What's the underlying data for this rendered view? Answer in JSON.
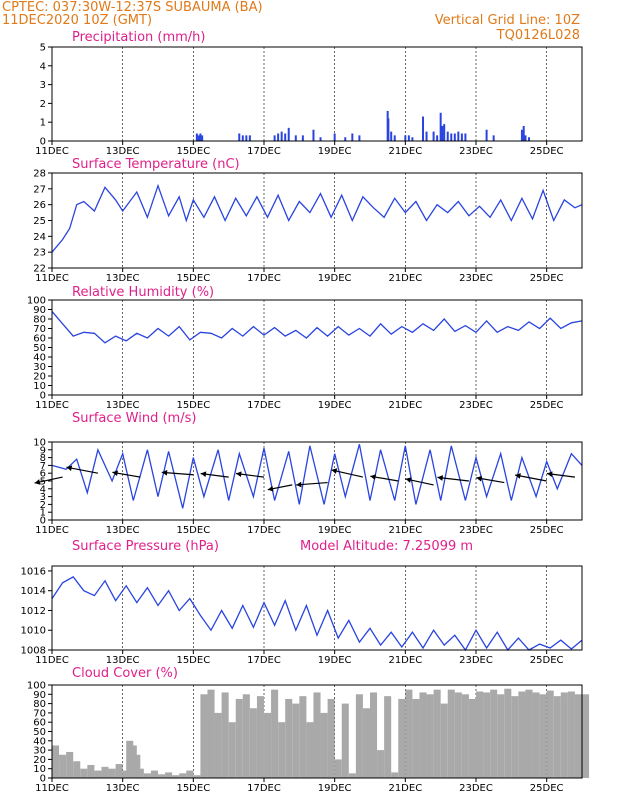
{
  "header": {
    "line1": "CPTEC:   037:30W-12:37S   SUBAUMA (BA)",
    "line2": "11DEC2020  10Z (GMT)",
    "right1": "Vertical Grid Line: 10Z",
    "right2": "TQ0126L028"
  },
  "x_labels": [
    "11DEC",
    "13DEC",
    "15DEC",
    "17DEC",
    "19DEC",
    "21DEC",
    "23DEC",
    "25DEC"
  ],
  "colors": {
    "header": "#e07a1a",
    "title": "#e0208a",
    "series": "#2a44e0",
    "bars": "#2a44e0",
    "cloud": "#a9a9a9"
  },
  "chart_data": [
    {
      "type": "bar",
      "title": "Precipitation (mm/h)",
      "ylim": [
        0,
        5
      ],
      "yticks": [
        0,
        1,
        2,
        3,
        4,
        5
      ],
      "x": [
        4.1,
        4.15,
        4.2,
        4.25,
        5.3,
        5.4,
        5.5,
        5.6,
        6.3,
        6.4,
        6.5,
        6.6,
        6.7,
        6.9,
        7.1,
        7.4,
        7.6,
        8.0,
        8.3,
        8.5,
        8.7,
        9.5,
        9.52,
        9.6,
        9.7,
        10.0,
        10.1,
        10.2,
        10.5,
        10.6,
        10.8,
        10.9,
        11.0,
        11.05,
        11.1,
        11.2,
        11.3,
        11.4,
        11.5,
        11.6,
        11.7,
        12.3,
        12.5,
        13.3,
        13.35,
        13.4,
        13.5
      ],
      "values": [
        0.4,
        0.3,
        0.4,
        0.3,
        0.4,
        0.3,
        0.3,
        0.3,
        0.3,
        0.4,
        0.5,
        0.4,
        0.7,
        0.3,
        0.3,
        0.6,
        0.2,
        0.4,
        0.2,
        0.4,
        0.3,
        1.6,
        1.2,
        0.5,
        0.3,
        0.3,
        0.3,
        0.2,
        1.3,
        0.5,
        0.5,
        0.3,
        1.5,
        0.8,
        0.9,
        0.5,
        0.4,
        0.4,
        0.5,
        0.4,
        0.4,
        0.6,
        0.3,
        0.6,
        0.8,
        0.3,
        0.2
      ]
    },
    {
      "type": "line",
      "title": "Surface Temperature (nC)",
      "ylim": [
        22,
        28
      ],
      "yticks": [
        22,
        23,
        24,
        25,
        26,
        27,
        28
      ],
      "x": [
        0,
        0.3,
        0.5,
        0.7,
        0.9,
        1.2,
        1.5,
        1.8,
        2.0,
        2.4,
        2.7,
        3.0,
        3.3,
        3.6,
        3.8,
        4.0,
        4.3,
        4.6,
        4.9,
        5.2,
        5.5,
        5.8,
        6.1,
        6.4,
        6.7,
        7.0,
        7.3,
        7.6,
        7.9,
        8.2,
        8.5,
        8.8,
        9.1,
        9.4,
        9.7,
        10.0,
        10.3,
        10.6,
        10.9,
        11.2,
        11.5,
        11.8,
        12.1,
        12.4,
        12.7,
        13.0,
        13.3,
        13.6,
        13.9,
        14.2,
        14.5,
        14.8,
        15.0
      ],
      "values": [
        23.0,
        23.8,
        24.5,
        26.0,
        26.2,
        25.6,
        27.1,
        26.3,
        25.6,
        26.8,
        25.2,
        27.2,
        25.3,
        26.5,
        25.0,
        26.3,
        25.2,
        26.5,
        25.0,
        26.4,
        25.3,
        26.5,
        25.2,
        26.6,
        25.0,
        26.2,
        25.5,
        26.7,
        25.2,
        26.6,
        25.0,
        26.5,
        25.8,
        25.2,
        26.4,
        25.5,
        26.2,
        25.0,
        26.0,
        25.5,
        26.2,
        25.3,
        25.9,
        25.2,
        26.3,
        25.0,
        26.4,
        25.1,
        26.9,
        25.0,
        26.3,
        25.8,
        26.0
      ]
    },
    {
      "type": "line",
      "title": "Relative Humidity (%)",
      "ylim": [
        0,
        100
      ],
      "yticks": [
        0,
        10,
        20,
        30,
        40,
        50,
        60,
        70,
        80,
        90,
        100
      ],
      "x": [
        0,
        0.3,
        0.6,
        0.9,
        1.2,
        1.5,
        1.8,
        2.1,
        2.4,
        2.7,
        3.0,
        3.3,
        3.6,
        3.9,
        4.2,
        4.5,
        4.8,
        5.1,
        5.4,
        5.7,
        6.0,
        6.3,
        6.6,
        6.9,
        7.2,
        7.5,
        7.8,
        8.1,
        8.4,
        8.7,
        9.0,
        9.3,
        9.6,
        9.9,
        10.2,
        10.5,
        10.8,
        11.1,
        11.4,
        11.7,
        12.0,
        12.3,
        12.6,
        12.9,
        13.2,
        13.5,
        13.8,
        14.1,
        14.4,
        14.7,
        15.0
      ],
      "values": [
        88,
        75,
        62,
        66,
        65,
        55,
        62,
        57,
        65,
        60,
        70,
        62,
        72,
        58,
        66,
        65,
        60,
        70,
        62,
        72,
        63,
        71,
        62,
        68,
        60,
        71,
        62,
        72,
        63,
        70,
        62,
        75,
        64,
        72,
        66,
        75,
        68,
        80,
        67,
        73,
        66,
        78,
        66,
        72,
        68,
        77,
        70,
        81,
        70,
        76,
        78
      ]
    },
    {
      "type": "line",
      "title": "Surface Wind (m/s)",
      "ylim": [
        0,
        10
      ],
      "yticks": [
        0,
        1,
        2,
        3,
        4,
        5,
        6,
        7,
        8,
        9,
        10
      ],
      "x": [
        0,
        0.4,
        0.7,
        1.0,
        1.3,
        1.7,
        2.0,
        2.3,
        2.7,
        3.0,
        3.3,
        3.7,
        4.0,
        4.3,
        4.7,
        5.0,
        5.3,
        5.7,
        6.0,
        6.3,
        6.7,
        7.0,
        7.3,
        7.7,
        8.0,
        8.3,
        8.7,
        9.0,
        9.3,
        9.7,
        10.0,
        10.3,
        10.7,
        11.0,
        11.3,
        11.7,
        12.0,
        12.3,
        12.7,
        13.0,
        13.3,
        13.7,
        14.0,
        14.3,
        14.7,
        15.0
      ],
      "values": [
        7.0,
        6.5,
        7.8,
        3.5,
        9.0,
        5.0,
        8.5,
        2.5,
        9.0,
        3.0,
        8.8,
        1.5,
        8.0,
        3.0,
        9.0,
        2.5,
        8.5,
        3.0,
        9.2,
        2.5,
        8.8,
        2.0,
        9.5,
        2.0,
        8.5,
        3.0,
        9.7,
        2.5,
        9.0,
        2.5,
        9.5,
        2.0,
        9.0,
        2.5,
        9.5,
        2.5,
        8.0,
        3.0,
        8.5,
        2.5,
        8.0,
        3.0,
        7.5,
        4.0,
        8.5,
        7.0
      ],
      "arrows": [
        {
          "x": 0.3,
          "y": 5.5,
          "dx": -0.8,
          "dy": -0.5
        },
        {
          "x": 1.3,
          "y": 6.0,
          "dx": -0.9,
          "dy": 0.5
        },
        {
          "x": 2.5,
          "y": 5.5,
          "dx": -0.8,
          "dy": 0.4
        },
        {
          "x": 4.0,
          "y": 5.8,
          "dx": -0.9,
          "dy": 0.2
        },
        {
          "x": 5.0,
          "y": 5.5,
          "dx": -0.8,
          "dy": 0.3
        },
        {
          "x": 6.0,
          "y": 5.5,
          "dx": -0.8,
          "dy": 0.3
        },
        {
          "x": 6.8,
          "y": 4.5,
          "dx": -0.7,
          "dy": -0.4
        },
        {
          "x": 7.8,
          "y": 4.8,
          "dx": -0.9,
          "dy": -0.2
        },
        {
          "x": 8.8,
          "y": 5.5,
          "dx": -0.9,
          "dy": 0.6
        },
        {
          "x": 9.8,
          "y": 5.0,
          "dx": -0.8,
          "dy": 0.4
        },
        {
          "x": 10.8,
          "y": 4.5,
          "dx": -0.8,
          "dy": 0.5
        },
        {
          "x": 11.8,
          "y": 5.0,
          "dx": -0.9,
          "dy": 0.3
        },
        {
          "x": 12.8,
          "y": 4.8,
          "dx": -0.8,
          "dy": 0.4
        },
        {
          "x": 14.0,
          "y": 5.0,
          "dx": -0.9,
          "dy": 0.5
        },
        {
          "x": 14.8,
          "y": 5.5,
          "dx": -0.8,
          "dy": 0.3
        }
      ]
    },
    {
      "type": "line",
      "title": "Surface Pressure (hPa)",
      "annotation": "Model Altitude: 7.25099 m",
      "ylim": [
        1008,
        1016.5
      ],
      "yticks": [
        1008,
        1010,
        1012,
        1014,
        1016
      ],
      "x": [
        0,
        0.3,
        0.6,
        0.9,
        1.2,
        1.5,
        1.8,
        2.1,
        2.4,
        2.7,
        3.0,
        3.3,
        3.6,
        3.9,
        4.2,
        4.5,
        4.8,
        5.1,
        5.4,
        5.7,
        6.0,
        6.3,
        6.6,
        6.9,
        7.2,
        7.5,
        7.8,
        8.1,
        8.4,
        8.7,
        9.0,
        9.3,
        9.6,
        9.9,
        10.2,
        10.5,
        10.8,
        11.1,
        11.4,
        11.7,
        12.0,
        12.3,
        12.6,
        12.9,
        13.2,
        13.5,
        13.8,
        14.1,
        14.4,
        14.7,
        15.0
      ],
      "values": [
        1013.2,
        1014.8,
        1015.4,
        1014.0,
        1013.5,
        1015.0,
        1013.0,
        1014.5,
        1012.8,
        1014.3,
        1012.5,
        1014.0,
        1012.0,
        1013.2,
        1011.5,
        1010.0,
        1012.0,
        1010.2,
        1012.5,
        1010.3,
        1012.8,
        1010.5,
        1013.0,
        1010.0,
        1012.5,
        1009.5,
        1012.0,
        1009.2,
        1011.0,
        1008.8,
        1010.2,
        1008.5,
        1009.8,
        1008.3,
        1009.8,
        1008.2,
        1010.0,
        1008.5,
        1009.5,
        1008.0,
        1010.0,
        1008.2,
        1009.8,
        1008.0,
        1009.2,
        1008.0,
        1008.6,
        1008.2,
        1009.0,
        1008.1,
        1009.0
      ]
    },
    {
      "type": "area",
      "title": "Cloud Cover (%)",
      "ylim": [
        0,
        100
      ],
      "yticks": [
        0,
        10,
        20,
        30,
        40,
        50,
        60,
        70,
        80,
        90,
        100
      ],
      "x": [
        0,
        0.2,
        0.4,
        0.6,
        0.8,
        1.0,
        1.2,
        1.4,
        1.6,
        1.8,
        2.0,
        2.1,
        2.2,
        2.3,
        2.4,
        2.6,
        2.8,
        3.0,
        3.2,
        3.4,
        3.6,
        3.8,
        4.0,
        4.2,
        4.4,
        4.6,
        4.8,
        5.0,
        5.2,
        5.4,
        5.6,
        5.8,
        6.0,
        6.2,
        6.4,
        6.6,
        6.8,
        7.0,
        7.2,
        7.4,
        7.6,
        7.8,
        8.0,
        8.2,
        8.4,
        8.6,
        8.8,
        9.0,
        9.2,
        9.4,
        9.6,
        9.8,
        10.0,
        10.2,
        10.4,
        10.6,
        10.8,
        11.0,
        11.2,
        11.4,
        11.6,
        11.8,
        12.0,
        12.2,
        12.4,
        12.6,
        12.8,
        13.0,
        13.2,
        13.4,
        13.6,
        13.8,
        14.0,
        14.2,
        14.4,
        14.6,
        14.8,
        15.0
      ],
      "values": [
        35,
        25,
        28,
        18,
        10,
        14,
        8,
        12,
        10,
        15,
        8,
        40,
        35,
        25,
        10,
        5,
        8,
        4,
        6,
        3,
        5,
        8,
        3,
        90,
        95,
        70,
        92,
        60,
        85,
        90,
        75,
        88,
        70,
        95,
        60,
        85,
        80,
        88,
        60,
        92,
        70,
        85,
        20,
        80,
        5,
        90,
        75,
        92,
        30,
        88,
        6,
        85,
        95,
        85,
        92,
        90,
        95,
        80,
        95,
        92,
        90,
        85,
        93,
        92,
        95,
        90,
        96,
        88,
        93,
        95,
        92,
        90,
        94,
        88,
        92,
        93,
        90,
        90
      ]
    }
  ]
}
